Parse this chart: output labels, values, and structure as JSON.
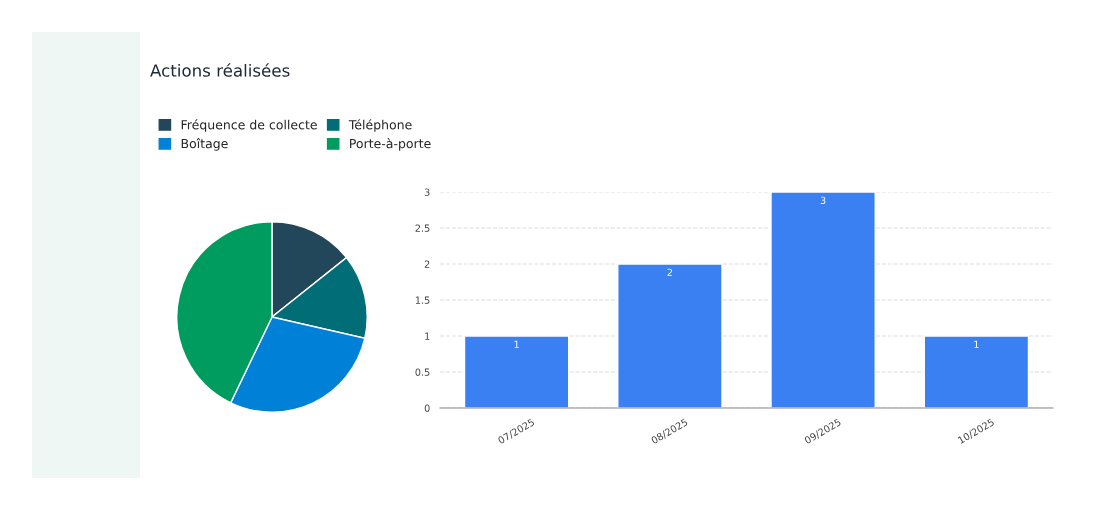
{
  "chart_data": [
    {
      "type": "pie",
      "title": "Actions réalisées",
      "categories": [
        "Fréquence de collecte",
        "Téléphone",
        "Boîtage",
        "Porte-à-porte"
      ],
      "values": [
        14.29,
        14.29,
        28.57,
        42.86
      ],
      "colors": [
        "#22475a",
        "#006d77",
        "#0080d6",
        "#009b5e"
      ],
      "legend": "top"
    },
    {
      "type": "bar",
      "categories": [
        "07/2025",
        "08/2025",
        "09/2025",
        "10/2025"
      ],
      "values": [
        1,
        2,
        3,
        1
      ],
      "color": "#3b80f3",
      "ylim": [
        0,
        3
      ],
      "yticks": [
        0,
        0.5,
        1,
        1.5,
        2,
        2.5,
        3
      ],
      "grid": "y",
      "data_labels": true
    }
  ]
}
